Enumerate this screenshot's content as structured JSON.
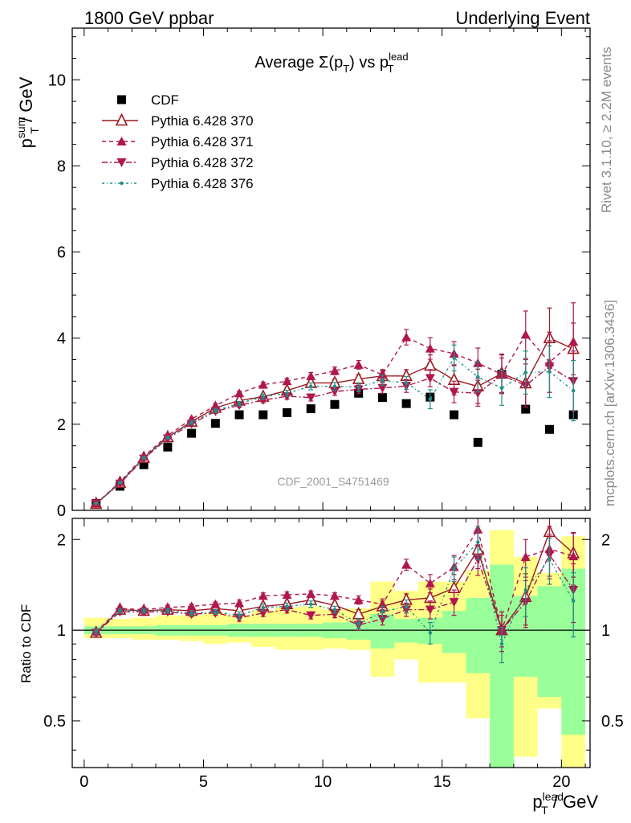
{
  "header": {
    "left": "1800 GeV ppbar",
    "right": "Underlying Event"
  },
  "side_text": {
    "rivet": "Rivet 3.1.10, ≥ 2.2M events",
    "mcplots": "mcplots.cern.ch [arXiv:1306.3436]"
  },
  "chart_data": [
    {
      "type": "scatter",
      "title": "Average Σ(p_T) vs p_T^lead",
      "ylabel": "p_T^sum / GeV",
      "xlim": [
        -0.5,
        21.2
      ],
      "ylim": [
        0,
        11.2
      ],
      "y_ticks": [
        0,
        2,
        4,
        6,
        8,
        10
      ],
      "watermark": "CDF_2001_S4751469",
      "legend_position": "top-left",
      "x": [
        0.5,
        1.5,
        2.5,
        3.5,
        4.5,
        5.5,
        6.5,
        7.5,
        8.5,
        9.5,
        10.5,
        11.5,
        12.5,
        13.5,
        14.5,
        15.5,
        16.5,
        17.5,
        18.5,
        19.5,
        20.5
      ],
      "series": [
        {
          "name": "CDF",
          "color": "#000000",
          "marker": "square",
          "values": [
            0.16,
            0.56,
            1.06,
            1.47,
            1.79,
            2.02,
            2.22,
            2.22,
            2.27,
            2.36,
            2.46,
            2.72,
            2.62,
            2.48,
            2.63,
            2.22,
            1.58,
            3.16,
            2.35,
            1.88,
            2.22
          ]
        },
        {
          "name": "Pythia 6.428 370",
          "color": "#9b1a1f",
          "marker": "triangle-up-open",
          "line": "solid",
          "values": [
            0.15,
            0.64,
            1.22,
            1.7,
            2.06,
            2.38,
            2.55,
            2.64,
            2.78,
            2.96,
            2.96,
            3.05,
            3.12,
            3.12,
            3.36,
            3.03,
            2.88,
            3.18,
            2.95,
            4.0,
            3.75
          ],
          "errors": [
            0.01,
            0.02,
            0.03,
            0.03,
            0.04,
            0.05,
            0.05,
            0.06,
            0.07,
            0.08,
            0.09,
            0.1,
            0.13,
            0.15,
            0.25,
            0.35,
            0.4,
            0.45,
            0.55,
            0.7,
            0.6
          ]
        },
        {
          "name": "Pythia 6.428 371",
          "color": "#b0174d",
          "marker": "triangle-up-filled",
          "line": "dashed",
          "values": [
            0.16,
            0.66,
            1.25,
            1.74,
            2.12,
            2.43,
            2.72,
            2.92,
            3.0,
            3.12,
            3.24,
            3.38,
            3.15,
            4.02,
            3.76,
            3.64,
            3.42,
            3.16,
            4.08,
            3.44,
            3.92
          ],
          "errors": [
            0.01,
            0.02,
            0.03,
            0.03,
            0.04,
            0.05,
            0.05,
            0.06,
            0.07,
            0.08,
            0.09,
            0.1,
            0.12,
            0.18,
            0.25,
            0.28,
            0.35,
            0.45,
            0.55,
            0.7,
            0.9
          ]
        },
        {
          "name": "Pythia 6.428 372",
          "color": "#b0174d",
          "marker": "triangle-down-filled",
          "line": "dashdot",
          "values": [
            0.16,
            0.62,
            1.2,
            1.67,
            2.01,
            2.3,
            2.44,
            2.56,
            2.65,
            2.62,
            2.76,
            2.81,
            2.84,
            2.89,
            3.07,
            2.75,
            2.72,
            3.14,
            2.9,
            3.34,
            3.0
          ],
          "errors": [
            0.01,
            0.02,
            0.03,
            0.03,
            0.04,
            0.05,
            0.05,
            0.06,
            0.07,
            0.08,
            0.09,
            0.1,
            0.12,
            0.15,
            0.2,
            0.25,
            0.3,
            0.4,
            0.5,
            0.6,
            0.7
          ]
        },
        {
          "name": "Pythia 6.428 376",
          "color": "#1f8f88",
          "marker": "dot",
          "line": "dashdotted",
          "values": [
            0.16,
            0.64,
            1.22,
            1.69,
            2.04,
            2.32,
            2.48,
            2.64,
            2.72,
            2.88,
            2.88,
            2.86,
            3.02,
            2.96,
            2.58,
            3.54,
            3.1,
            2.84,
            3.2,
            3.22,
            2.78
          ],
          "errors": [
            0.01,
            0.02,
            0.03,
            0.03,
            0.04,
            0.05,
            0.05,
            0.06,
            0.07,
            0.08,
            0.09,
            0.1,
            0.12,
            0.15,
            0.22,
            0.3,
            0.35,
            0.4,
            0.5,
            0.6,
            0.7
          ]
        }
      ]
    },
    {
      "type": "scatter",
      "title": "",
      "xlabel": "p_T^lead / GeV",
      "ylabel": "Ratio to CDF",
      "scale": "log",
      "xlim": [
        -0.5,
        21.2
      ],
      "ylim": [
        0.35,
        2.35
      ],
      "x_ticks": [
        0,
        5,
        10,
        15,
        20
      ],
      "y_ticks": [
        0.5,
        1,
        2
      ],
      "x": [
        0.5,
        1.5,
        2.5,
        3.5,
        4.5,
        5.5,
        6.5,
        7.5,
        8.5,
        9.5,
        10.5,
        11.5,
        12.5,
        13.5,
        14.5,
        15.5,
        16.5,
        17.5,
        18.5,
        19.5,
        20.5
      ],
      "bands": {
        "stat_color": "#99ff99",
        "total_color": "#ffff88",
        "stat": [
          [
            0.97,
            1.03
          ],
          [
            0.97,
            1.03
          ],
          [
            0.97,
            1.03
          ],
          [
            0.96,
            1.04
          ],
          [
            0.96,
            1.04
          ],
          [
            0.96,
            1.04
          ],
          [
            0.95,
            1.05
          ],
          [
            0.95,
            1.05
          ],
          [
            0.95,
            1.05
          ],
          [
            0.95,
            1.05
          ],
          [
            0.94,
            1.06
          ],
          [
            0.93,
            1.07
          ],
          [
            0.87,
            1.13
          ],
          [
            0.91,
            1.09
          ],
          [
            0.9,
            1.1
          ],
          [
            0.84,
            1.16
          ],
          [
            0.72,
            1.28
          ],
          [
            0.35,
            1.65
          ],
          [
            0.7,
            1.3
          ],
          [
            0.6,
            1.4
          ],
          [
            0.45,
            1.6
          ]
        ],
        "total": [
          [
            0.94,
            1.1
          ],
          [
            0.94,
            1.09
          ],
          [
            0.93,
            1.1
          ],
          [
            0.93,
            1.12
          ],
          [
            0.92,
            1.12
          ],
          [
            0.9,
            1.14
          ],
          [
            0.91,
            1.12
          ],
          [
            0.88,
            1.16
          ],
          [
            0.86,
            1.19
          ],
          [
            0.86,
            1.2
          ],
          [
            0.87,
            1.17
          ],
          [
            0.86,
            1.18
          ],
          [
            0.7,
            1.45
          ],
          [
            0.8,
            1.35
          ],
          [
            0.67,
            1.45
          ],
          [
            0.67,
            1.45
          ],
          [
            0.51,
            1.58
          ],
          [
            0.35,
            2.15
          ],
          [
            0.38,
            1.75
          ],
          [
            0.55,
            1.55
          ],
          [
            0.35,
            2.05
          ]
        ]
      },
      "series": [
        {
          "name": "Pythia 6.428 370",
          "color": "#9b1a1f",
          "values": [
            0.98,
            1.17,
            1.16,
            1.17,
            1.16,
            1.18,
            1.16,
            1.2,
            1.22,
            1.26,
            1.21,
            1.13,
            1.2,
            1.26,
            1.28,
            1.38,
            1.85,
            1.0,
            1.29,
            2.12,
            1.8
          ],
          "errors": [
            0.02,
            0.02,
            0.02,
            0.02,
            0.02,
            0.02,
            0.03,
            0.03,
            0.03,
            0.03,
            0.03,
            0.04,
            0.05,
            0.06,
            0.09,
            0.15,
            0.25,
            0.15,
            0.25,
            0.35,
            0.3
          ]
        },
        {
          "name": "Pythia 6.428 371",
          "color": "#b0174d",
          "values": [
            0.99,
            1.18,
            1.17,
            1.19,
            1.2,
            1.22,
            1.23,
            1.3,
            1.31,
            1.32,
            1.3,
            1.26,
            1.22,
            1.65,
            1.43,
            1.62,
            2.16,
            1.0,
            1.75,
            1.86,
            1.76
          ],
          "errors": [
            0.02,
            0.02,
            0.02,
            0.02,
            0.02,
            0.02,
            0.03,
            0.03,
            0.03,
            0.03,
            0.03,
            0.04,
            0.05,
            0.07,
            0.1,
            0.15,
            0.25,
            0.15,
            0.25,
            0.35,
            0.35
          ]
        },
        {
          "name": "Pythia 6.428 372",
          "color": "#b0174d",
          "values": [
            0.98,
            1.15,
            1.15,
            1.15,
            1.13,
            1.14,
            1.1,
            1.14,
            1.17,
            1.12,
            1.13,
            1.04,
            1.09,
            1.17,
            1.17,
            1.24,
            1.72,
            1.0,
            1.24,
            1.78,
            1.36
          ],
          "errors": [
            0.02,
            0.02,
            0.02,
            0.02,
            0.02,
            0.02,
            0.03,
            0.03,
            0.03,
            0.03,
            0.03,
            0.04,
            0.05,
            0.06,
            0.08,
            0.12,
            0.2,
            0.12,
            0.22,
            0.3,
            0.3
          ]
        },
        {
          "name": "Pythia 6.428 376",
          "color": "#1f8f88",
          "values": [
            0.99,
            1.16,
            1.16,
            1.16,
            1.14,
            1.15,
            1.12,
            1.19,
            1.2,
            1.22,
            1.17,
            1.05,
            1.15,
            1.2,
            0.98,
            1.6,
            1.96,
            0.9,
            1.36,
            1.72,
            1.25
          ],
          "errors": [
            0.02,
            0.02,
            0.02,
            0.02,
            0.02,
            0.02,
            0.03,
            0.03,
            0.03,
            0.03,
            0.03,
            0.04,
            0.05,
            0.06,
            0.08,
            0.15,
            0.25,
            0.12,
            0.25,
            0.3,
            0.3
          ]
        }
      ]
    }
  ]
}
